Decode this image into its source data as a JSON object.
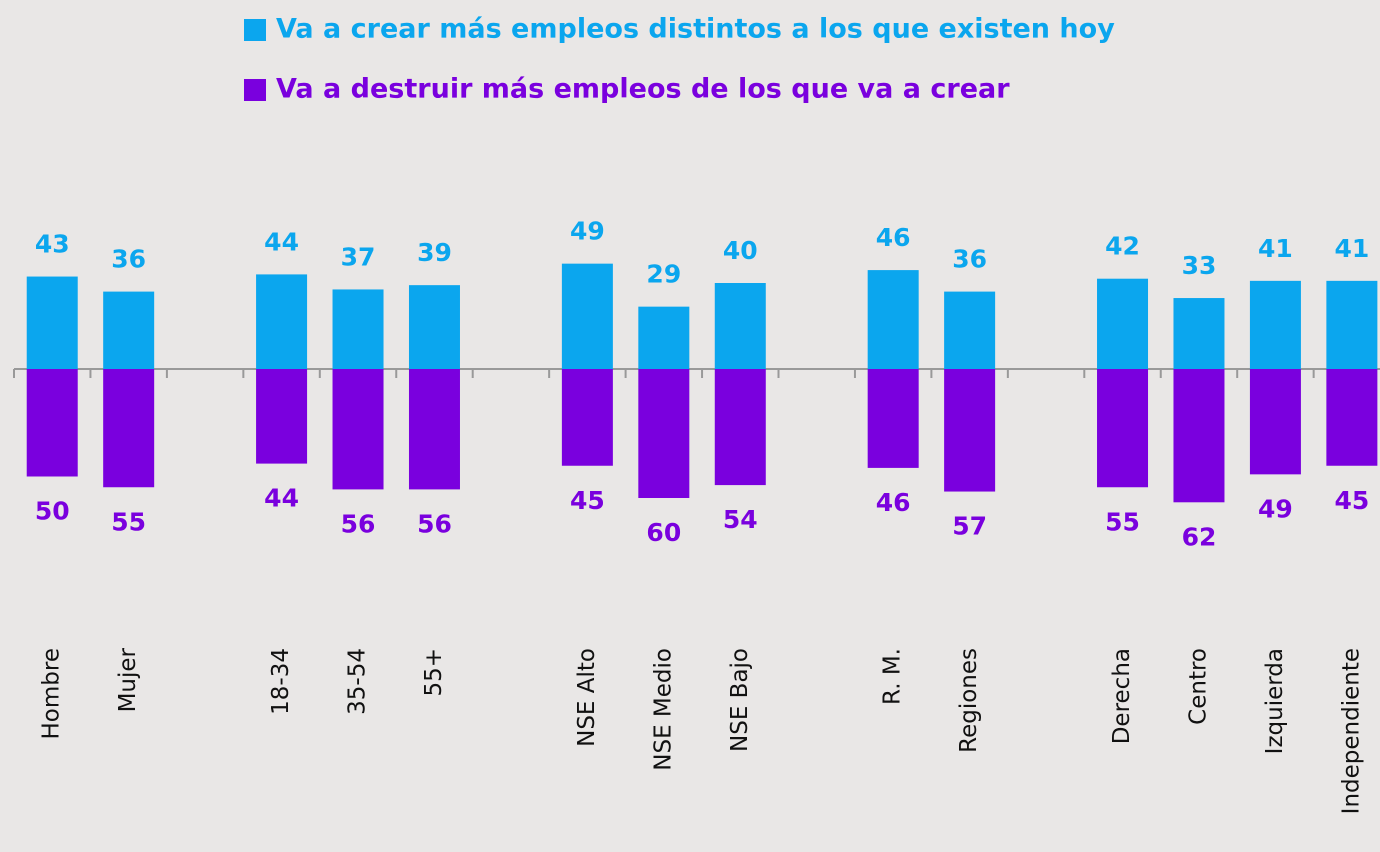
{
  "chart_data": {
    "type": "bar",
    "categories": [
      "Hombre",
      "Mujer",
      null,
      "18-34",
      "35-54",
      "55+",
      null,
      "NSE Alto",
      "NSE Medio",
      "NSE Bajo",
      null,
      "R. M.",
      "Regiones",
      null,
      "Derecha",
      "Centro",
      "Izquierda",
      "Independiente"
    ],
    "series": [
      {
        "name": "Va a crear más empleos distintos a los que existen hoy",
        "color": "#0ba6ee",
        "values": [
          43,
          36,
          null,
          44,
          37,
          39,
          null,
          49,
          29,
          40,
          null,
          46,
          36,
          null,
          42,
          33,
          41,
          41
        ]
      },
      {
        "name": "Va a destruir más empleos de los que va a crear",
        "color": "#7a00de",
        "values": [
          -50,
          -55,
          null,
          -44,
          -56,
          -56,
          null,
          -45,
          -60,
          -54,
          null,
          -46,
          -57,
          null,
          -55,
          -62,
          -49,
          -45
        ],
        "value_labels": [
          "50",
          "55",
          null,
          "44",
          "56",
          "56",
          null,
          "45",
          "60",
          "54",
          null,
          "46",
          "57",
          null,
          "55",
          "62",
          "49",
          "45"
        ]
      }
    ]
  }
}
